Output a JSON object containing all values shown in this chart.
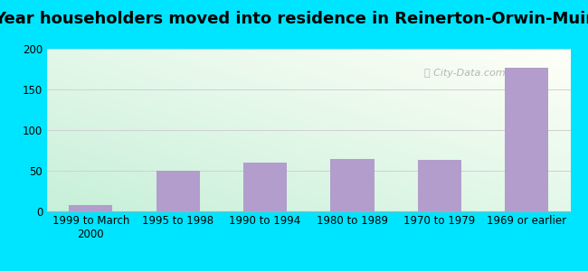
{
  "categories": [
    "1999 to March\n2000",
    "1995 to 1998",
    "1990 to 1994",
    "1980 to 1989",
    "1970 to 1979",
    "1969 or earlier"
  ],
  "values": [
    8,
    50,
    60,
    65,
    63,
    177
  ],
  "bar_color": "#b39dcc",
  "title": "Year householders moved into residence in Reinerton-Orwin-Muir",
  "ylim": [
    0,
    200
  ],
  "yticks": [
    0,
    50,
    100,
    150,
    200
  ],
  "background_outer": "#00e5ff",
  "grid_color": "#d0d0d0",
  "title_fontsize": 13,
  "tick_fontsize": 8.5,
  "bg_top_color": "#e8faf0",
  "bg_bottom_color": "#c8f0d8"
}
